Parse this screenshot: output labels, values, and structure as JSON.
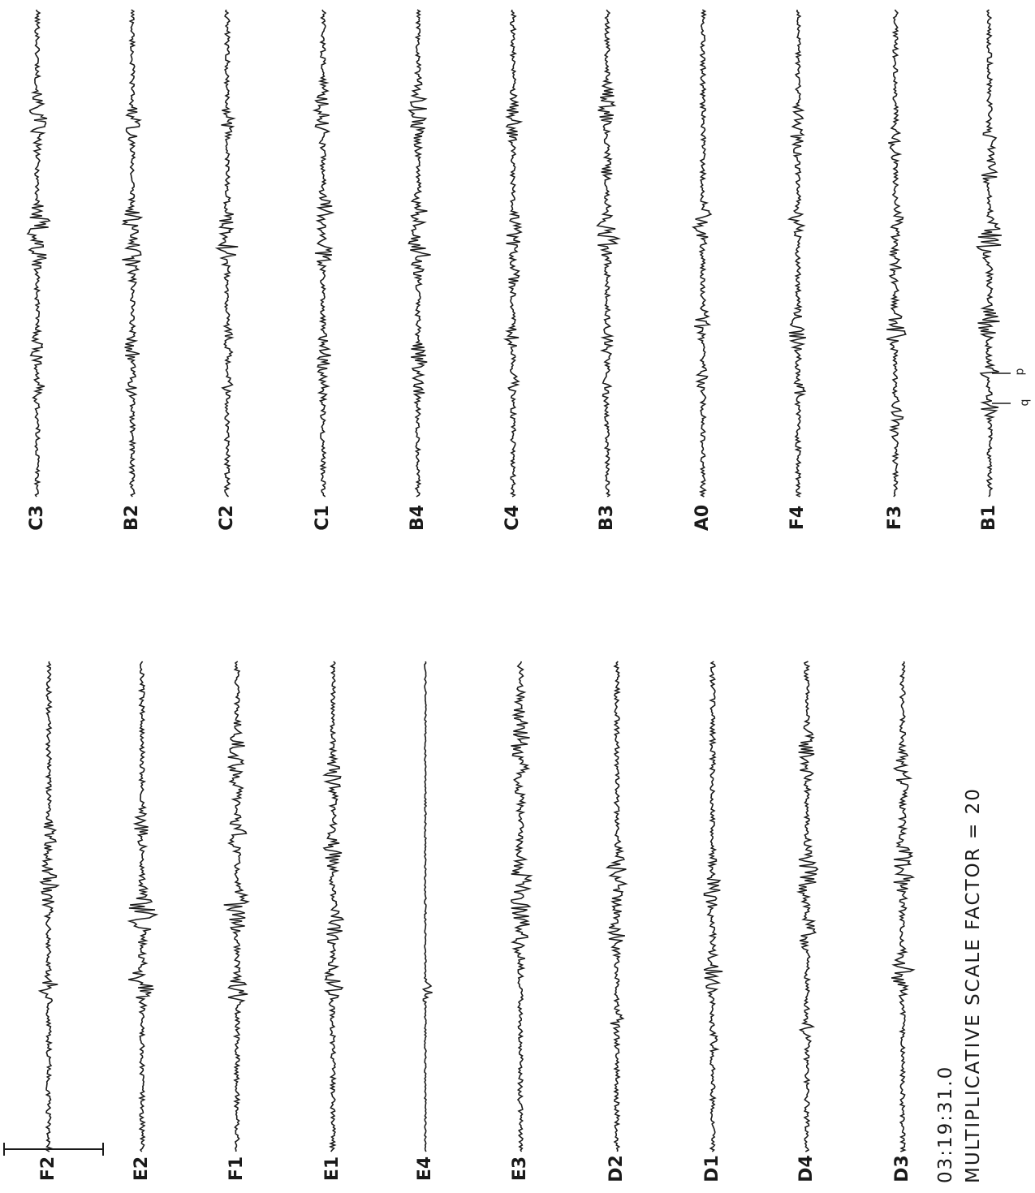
{
  "chart_data": {
    "type": "line",
    "right_group_labels": [
      "C3",
      "B2",
      "C2",
      "C1",
      "B4",
      "C4",
      "B3",
      "A0",
      "F4",
      "F3",
      "B1"
    ],
    "left_group_labels": [
      "F2",
      "E2",
      "F1",
      "E1",
      "E4",
      "E3",
      "D2",
      "D1",
      "D4",
      "D3"
    ],
    "caption_time": "03:19:31.0",
    "caption_scale": "MULTIPLICATIVE SCALE FACTOR = 20",
    "pick_marks": [
      "p",
      "q"
    ],
    "trace_color": "#1a1a1a"
  }
}
